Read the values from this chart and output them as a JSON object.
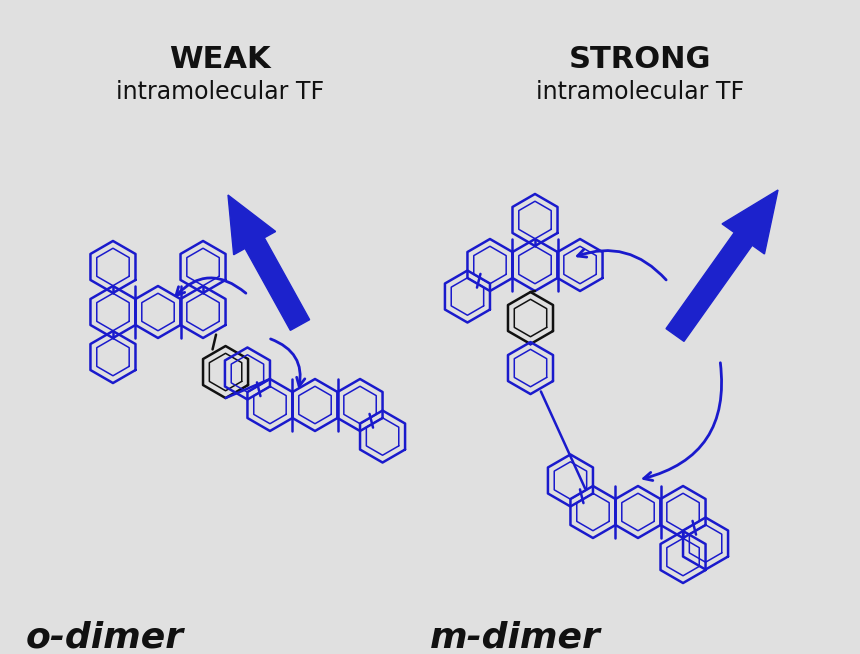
{
  "bg_color": "#e0e0e0",
  "blue": "#1a1acc",
  "black": "#111111",
  "title_weak_line1": "WEAK",
  "title_weak_line2": "intramolecular TF",
  "title_strong_line1": "STRONG",
  "title_strong_line2": "intramolecular TF",
  "label_left": "o-dimer",
  "label_right": "m-dimer",
  "ring_lw": 1.8,
  "inner_ring_lw": 1.1,
  "figsize": [
    8.6,
    6.54
  ],
  "dpi": 100
}
